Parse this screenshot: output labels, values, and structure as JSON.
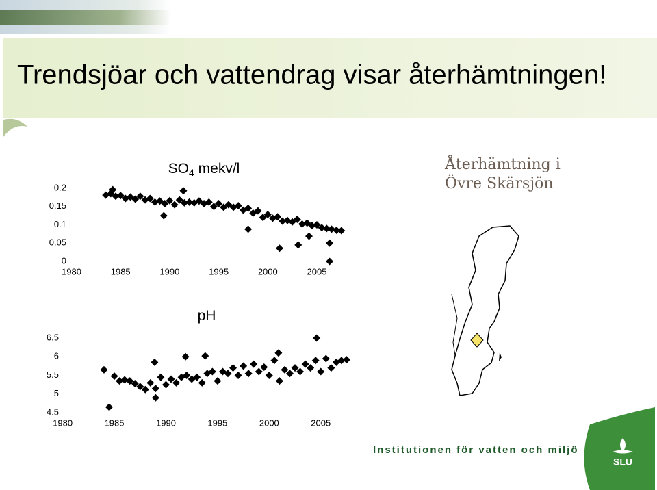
{
  "slide_title": "Trendsjöar och vattendrag visar återhämtningen!",
  "map_caption": [
    "Återhämtning i",
    "Övre Skärsjön"
  ],
  "footer": "Institutionen för vatten och miljö",
  "logo": "SLU",
  "chart_data": [
    {
      "type": "scatter",
      "title": [
        "SO",
        "4",
        " mekv/l"
      ],
      "color": "#000000",
      "marker": "diamond",
      "x": [
        1983.5,
        1984,
        1984.5,
        1985,
        1985.5,
        1986,
        1986.5,
        1987,
        1987.5,
        1988,
        1988.5,
        1989,
        1989.5,
        1990,
        1990.5,
        1991,
        1991.5,
        1992,
        1992.5,
        1993,
        1993.5,
        1994,
        1994.5,
        1995,
        1995.5,
        1996,
        1996.5,
        1997,
        1997.5,
        1998,
        1998.5,
        1999,
        1999.5,
        2000,
        2000.5,
        2001,
        2001.5,
        2002,
        2002.5,
        2003,
        2003.5,
        2004,
        2004.5,
        2005,
        2005.5,
        2006,
        2006.5,
        2007,
        2007.5,
        1984.2,
        1989.4,
        1991.4,
        1998.0,
        2001.2,
        2003.1,
        2004.2,
        2006.3,
        2006.3
      ],
      "values": [
        0.181,
        0.185,
        0.178,
        0.18,
        0.172,
        0.176,
        0.17,
        0.178,
        0.168,
        0.172,
        0.162,
        0.165,
        0.158,
        0.166,
        0.155,
        0.168,
        0.16,
        0.162,
        0.16,
        0.165,
        0.158,
        0.162,
        0.15,
        0.158,
        0.148,
        0.155,
        0.148,
        0.152,
        0.14,
        0.145,
        0.132,
        0.138,
        0.12,
        0.128,
        0.118,
        0.122,
        0.11,
        0.112,
        0.108,
        0.115,
        0.102,
        0.105,
        0.098,
        0.1,
        0.092,
        0.09,
        0.088,
        0.085,
        0.084,
        0.196,
        0.125,
        0.193,
        0.088,
        0.036,
        0.045,
        0.069,
        0.05,
        0.0
      ],
      "xlim": [
        1978.5,
        2008
      ],
      "xticks": [
        1980,
        1985,
        1990,
        1995,
        2000,
        2005
      ],
      "ylim": [
        0,
        0.2
      ],
      "yticks": [
        0,
        0.05,
        0.1,
        0.15,
        0.2
      ]
    },
    {
      "type": "scatter",
      "title": [
        "pH"
      ],
      "color": "#000000",
      "marker": "diamond",
      "x": [
        1984,
        1984.5,
        1985,
        1985.5,
        1986,
        1986.5,
        1987,
        1987.5,
        1988,
        1988.5,
        1989,
        1989.5,
        1990,
        1990.5,
        1991,
        1991.5,
        1992,
        1992.5,
        1993,
        1993.5,
        1994,
        1994.5,
        1995,
        1995.5,
        1996,
        1996.5,
        1997,
        1997.5,
        1998,
        1998.5,
        1999,
        1999.5,
        2000,
        2000.5,
        2001,
        2001.5,
        2002,
        2002.5,
        2003,
        2003.5,
        2004,
        2004.5,
        2005,
        2005.5,
        2006,
        2006.5,
        2007,
        2007.5,
        2004.6,
        1988.9,
        1991.9,
        1993.8,
        1989,
        2000.9
      ],
      "values": [
        5.65,
        4.65,
        5.48,
        5.35,
        5.38,
        5.35,
        5.28,
        5.2,
        5.12,
        5.3,
        5.15,
        5.45,
        5.25,
        5.4,
        5.3,
        5.45,
        5.5,
        5.4,
        5.45,
        5.3,
        5.55,
        5.6,
        5.35,
        5.6,
        5.55,
        5.7,
        5.5,
        5.75,
        5.55,
        5.8,
        5.6,
        5.72,
        5.5,
        5.9,
        5.35,
        5.65,
        5.55,
        5.7,
        5.6,
        5.8,
        5.7,
        5.9,
        5.6,
        5.95,
        5.7,
        5.85,
        5.9,
        5.92,
        6.5,
        5.85,
        6.0,
        6.02,
        4.9,
        6.1
      ],
      "xlim": [
        1978.5,
        2008
      ],
      "xticks": [
        1980,
        1985,
        1990,
        1995,
        2000,
        2005
      ],
      "ylim": [
        4.5,
        6.5
      ],
      "yticks": [
        4.5,
        5,
        5.5,
        6,
        6.5
      ]
    }
  ]
}
